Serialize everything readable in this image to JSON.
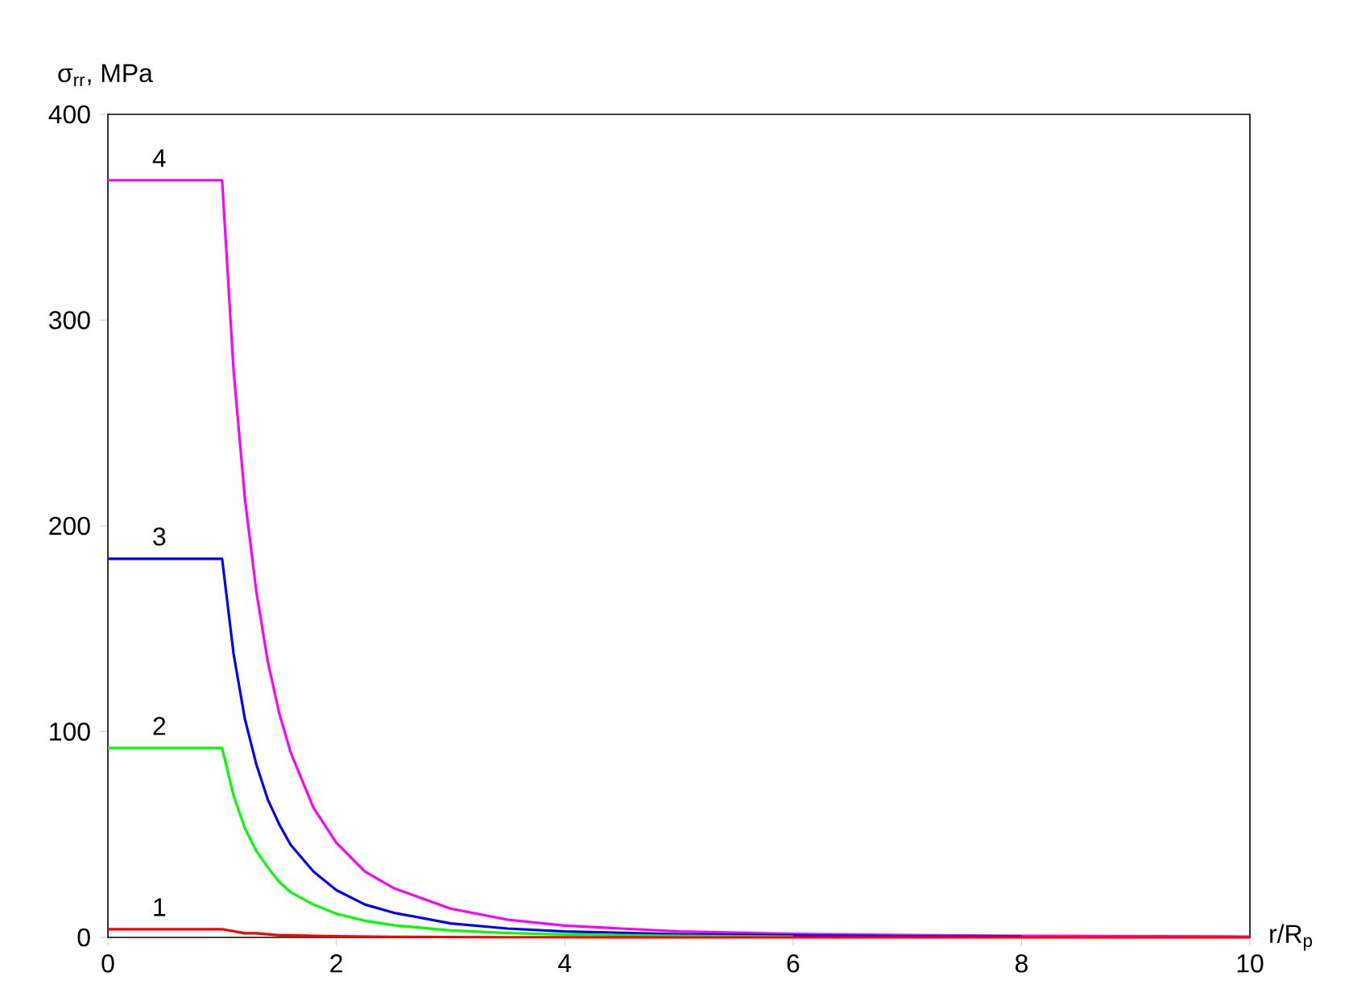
{
  "chart_data": {
    "type": "line",
    "xlabel": "r/R$_{p}$",
    "ylabel": "σ$_{rr}$, MPa",
    "x": [
      0,
      1,
      1.1,
      1.2,
      1.3,
      1.4,
      1.5,
      1.6,
      1.8,
      2,
      2.25,
      2.5,
      3,
      3.5,
      4,
      5,
      6,
      7,
      8,
      10
    ],
    "series": [
      {
        "name": "1",
        "color": "#ff0000",
        "values": [
          4,
          4,
          3,
          2,
          2,
          1.5,
          1,
          1,
          0.7,
          0.5,
          0.4,
          0.3,
          0.2,
          0.1,
          0.1,
          0,
          0,
          0,
          0,
          0
        ]
      },
      {
        "name": "2",
        "color": "#00ff00",
        "values": [
          92,
          92,
          69,
          53,
          42,
          34,
          27,
          22,
          16,
          11.5,
          8.1,
          5.9,
          3.4,
          2.1,
          1.4,
          0.7,
          0.4,
          null,
          null,
          null
        ]
      },
      {
        "name": "3",
        "color": "#0000ff",
        "values": [
          184,
          184,
          138,
          106,
          84,
          67,
          55,
          45,
          32,
          23,
          16,
          12,
          6.8,
          4.3,
          2.9,
          1.5,
          0.9,
          0.5,
          0.4,
          null
        ]
      },
      {
        "name": "4",
        "color": "#ff00ff",
        "values": [
          368,
          368,
          276,
          213,
          168,
          134,
          109,
          90,
          63,
          46,
          32,
          24,
          14,
          8.6,
          5.7,
          2.9,
          1.7,
          1.1,
          0.7,
          0.4
        ]
      }
    ],
    "xlim": [
      0,
      10
    ],
    "ylim": [
      0,
      400
    ],
    "xticks": [
      0,
      2,
      4,
      6,
      8,
      10
    ],
    "yticks": [
      0,
      100,
      200,
      300,
      400
    ],
    "marker": "none",
    "line_style": "solid"
  }
}
